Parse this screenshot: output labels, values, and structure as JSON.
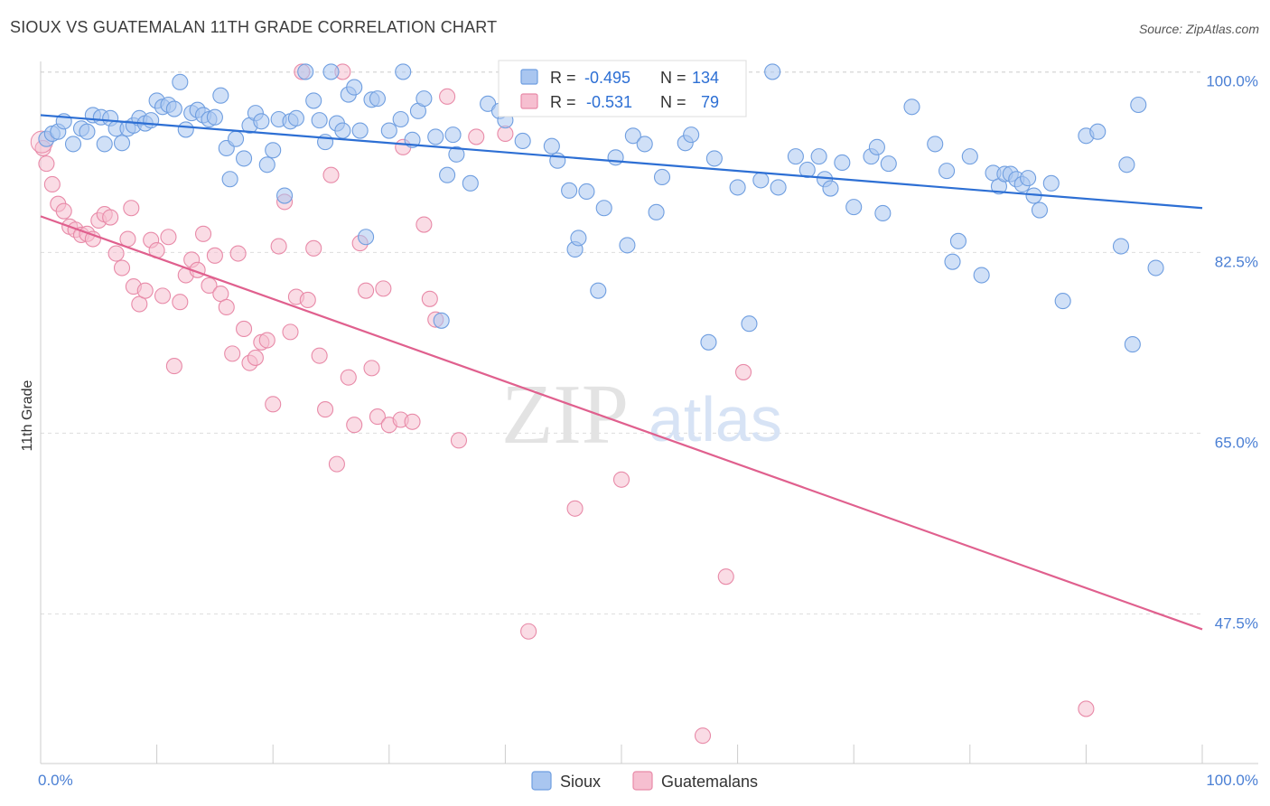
{
  "title": "SIOUX VS GUATEMALAN 11TH GRADE CORRELATION CHART",
  "source": "Source: ZipAtlas.com",
  "watermark": {
    "zip": "ZIP",
    "atlas": "atlas"
  },
  "colors": {
    "sioux_fill": "#a9c6f0",
    "sioux_stroke": "#6f9ee0",
    "sioux_line": "#2d6fd4",
    "guat_fill": "#f6bfd0",
    "guat_stroke": "#e88aa8",
    "guat_line": "#e0608e",
    "grid": "#dddddd",
    "tick_text": "#4a7fd4"
  },
  "legend": {
    "rows": [
      {
        "r_label": "R =",
        "r_value": "-0.495",
        "n_label": "N =",
        "n_value": "134"
      },
      {
        "r_label": "R =",
        "r_value": "-0.531",
        "n_label": "N =",
        "n_value": "79"
      }
    ]
  },
  "bottom_legend": [
    "Sioux",
    "Guatemalans"
  ],
  "chart_data": {
    "type": "scatter",
    "title": "SIOUX VS GUATEMALAN 11TH GRADE CORRELATION CHART",
    "xlabel": "",
    "ylabel": "11th Grade",
    "xlim": [
      0,
      100
    ],
    "ylim": [
      33,
      101
    ],
    "x_tick_labels": [
      "0.0%",
      "100.0%"
    ],
    "y_ticks": [
      47.5,
      65.0,
      82.5,
      100.0
    ],
    "y_tick_labels": [
      "47.5%",
      "65.0%",
      "82.5%",
      "100.0%"
    ],
    "grid": true,
    "legend_position": "top-center",
    "series": [
      {
        "name": "Sioux",
        "trend": {
          "x": [
            0,
            100
          ],
          "y": [
            95.8,
            86.8
          ]
        },
        "points": [
          [
            0.5,
            93.5
          ],
          [
            1.0,
            94.0
          ],
          [
            1.5,
            94.2
          ],
          [
            2.0,
            95.2
          ],
          [
            2.8,
            93.0
          ],
          [
            3.5,
            94.5
          ],
          [
            4.0,
            94.2
          ],
          [
            4.5,
            95.8
          ],
          [
            5.2,
            95.6
          ],
          [
            5.5,
            93.0
          ],
          [
            6.0,
            95.5
          ],
          [
            6.5,
            94.5
          ],
          [
            7.0,
            93.1
          ],
          [
            7.5,
            94.5
          ],
          [
            8.0,
            94.8
          ],
          [
            8.5,
            95.5
          ],
          [
            9.0,
            95.0
          ],
          [
            9.5,
            95.3
          ],
          [
            10.0,
            97.2
          ],
          [
            10.5,
            96.6
          ],
          [
            11.0,
            96.8
          ],
          [
            11.5,
            96.4
          ],
          [
            12.0,
            99.0
          ],
          [
            12.5,
            94.4
          ],
          [
            13.0,
            96.0
          ],
          [
            13.5,
            96.3
          ],
          [
            14.0,
            95.8
          ],
          [
            14.5,
            95.4
          ],
          [
            15.0,
            95.6
          ],
          [
            15.5,
            97.7
          ],
          [
            16.0,
            92.6
          ],
          [
            16.3,
            89.6
          ],
          [
            16.8,
            93.5
          ],
          [
            17.5,
            91.6
          ],
          [
            18.0,
            94.8
          ],
          [
            18.5,
            96.0
          ],
          [
            19.0,
            95.2
          ],
          [
            19.5,
            91.0
          ],
          [
            20.0,
            92.4
          ],
          [
            20.5,
            95.4
          ],
          [
            21.0,
            88.0
          ],
          [
            21.5,
            95.2
          ],
          [
            22.0,
            95.5
          ],
          [
            22.8,
            100.0
          ],
          [
            23.5,
            97.2
          ],
          [
            24.0,
            95.3
          ],
          [
            24.5,
            93.2
          ],
          [
            25.0,
            100.0
          ],
          [
            25.5,
            95.0
          ],
          [
            26.0,
            94.3
          ],
          [
            26.5,
            97.8
          ],
          [
            27.0,
            98.5
          ],
          [
            27.5,
            94.3
          ],
          [
            28.0,
            84.0
          ],
          [
            28.5,
            97.3
          ],
          [
            29.0,
            97.4
          ],
          [
            30.0,
            94.3
          ],
          [
            31.0,
            95.4
          ],
          [
            31.2,
            100.0
          ],
          [
            32.0,
            93.4
          ],
          [
            32.5,
            96.2
          ],
          [
            33.0,
            97.4
          ],
          [
            34.0,
            93.7
          ],
          [
            34.5,
            75.9
          ],
          [
            35.0,
            90.0
          ],
          [
            35.5,
            93.9
          ],
          [
            35.8,
            92.0
          ],
          [
            37.0,
            89.2
          ],
          [
            38.5,
            96.9
          ],
          [
            39.5,
            96.2
          ],
          [
            40.0,
            95.3
          ],
          [
            41.5,
            93.3
          ],
          [
            42.5,
            100.0
          ],
          [
            44.0,
            92.8
          ],
          [
            44.5,
            91.4
          ],
          [
            45.5,
            88.5
          ],
          [
            46.0,
            82.8
          ],
          [
            46.3,
            83.9
          ],
          [
            47.0,
            88.4
          ],
          [
            48.0,
            78.8
          ],
          [
            48.5,
            86.8
          ],
          [
            49.5,
            91.7
          ],
          [
            50.5,
            83.2
          ],
          [
            51.0,
            93.8
          ],
          [
            52.0,
            93.0
          ],
          [
            53.0,
            86.4
          ],
          [
            53.5,
            89.8
          ],
          [
            55.5,
            93.1
          ],
          [
            56.0,
            93.9
          ],
          [
            57.5,
            73.8
          ],
          [
            58.0,
            91.6
          ],
          [
            58.5,
            100.0
          ],
          [
            60.0,
            88.8
          ],
          [
            61.0,
            75.6
          ],
          [
            62.0,
            89.5
          ],
          [
            63.0,
            100.0
          ],
          [
            63.5,
            88.8
          ],
          [
            65.0,
            91.8
          ],
          [
            66.0,
            90.5
          ],
          [
            67.0,
            91.8
          ],
          [
            67.5,
            89.6
          ],
          [
            68.0,
            88.7
          ],
          [
            69.0,
            91.2
          ],
          [
            70.0,
            86.9
          ],
          [
            71.5,
            91.8
          ],
          [
            72.0,
            92.7
          ],
          [
            72.5,
            86.3
          ],
          [
            73.0,
            91.1
          ],
          [
            75.0,
            96.6
          ],
          [
            77.0,
            93.0
          ],
          [
            78.0,
            90.4
          ],
          [
            78.5,
            81.6
          ],
          [
            79.0,
            83.6
          ],
          [
            80.0,
            91.8
          ],
          [
            81.0,
            80.3
          ],
          [
            82.0,
            90.2
          ],
          [
            82.5,
            88.9
          ],
          [
            83.0,
            90.1
          ],
          [
            83.5,
            90.1
          ],
          [
            84.0,
            89.6
          ],
          [
            84.5,
            89.1
          ],
          [
            85.0,
            89.7
          ],
          [
            85.5,
            88.0
          ],
          [
            86.0,
            86.6
          ],
          [
            87.0,
            89.2
          ],
          [
            88.0,
            77.8
          ],
          [
            90.0,
            93.8
          ],
          [
            91.0,
            94.2
          ],
          [
            93.0,
            83.1
          ],
          [
            93.5,
            91.0
          ],
          [
            94.0,
            73.6
          ],
          [
            94.5,
            96.8
          ],
          [
            96.0,
            81.0
          ]
        ]
      },
      {
        "name": "Guatemalans",
        "trend": {
          "x": [
            0,
            100
          ],
          "y": [
            86.0,
            46.0
          ]
        },
        "points": [
          [
            0.2,
            92.6
          ],
          [
            0.5,
            91.1
          ],
          [
            1.0,
            89.1
          ],
          [
            1.5,
            87.2
          ],
          [
            2.0,
            86.5
          ],
          [
            2.5,
            85.0
          ],
          [
            3.0,
            84.7
          ],
          [
            3.5,
            84.2
          ],
          [
            4.0,
            84.3
          ],
          [
            4.5,
            83.8
          ],
          [
            5.0,
            85.6
          ],
          [
            5.5,
            86.2
          ],
          [
            6.0,
            85.9
          ],
          [
            6.5,
            82.4
          ],
          [
            7.0,
            81.0
          ],
          [
            7.5,
            83.8
          ],
          [
            7.8,
            86.8
          ],
          [
            8.0,
            79.2
          ],
          [
            8.5,
            77.5
          ],
          [
            9.0,
            78.8
          ],
          [
            9.5,
            83.7
          ],
          [
            10.0,
            82.7
          ],
          [
            10.5,
            78.3
          ],
          [
            11.0,
            84.0
          ],
          [
            11.5,
            71.5
          ],
          [
            12.0,
            77.7
          ],
          [
            12.5,
            80.3
          ],
          [
            13.0,
            81.8
          ],
          [
            13.5,
            80.8
          ],
          [
            14.0,
            84.3
          ],
          [
            14.5,
            79.3
          ],
          [
            15.0,
            82.2
          ],
          [
            15.5,
            78.5
          ],
          [
            16.0,
            77.2
          ],
          [
            16.5,
            72.7
          ],
          [
            17.0,
            82.4
          ],
          [
            17.5,
            75.1
          ],
          [
            18.0,
            71.8
          ],
          [
            18.5,
            72.3
          ],
          [
            19.0,
            73.8
          ],
          [
            19.5,
            74.0
          ],
          [
            20.0,
            67.8
          ],
          [
            20.5,
            83.1
          ],
          [
            21.0,
            87.4
          ],
          [
            21.5,
            74.8
          ],
          [
            22.0,
            78.2
          ],
          [
            22.5,
            100.0
          ],
          [
            23.0,
            77.9
          ],
          [
            23.5,
            82.9
          ],
          [
            24.0,
            72.5
          ],
          [
            24.5,
            67.3
          ],
          [
            25.0,
            90.0
          ],
          [
            25.5,
            62.0
          ],
          [
            26.0,
            100.0
          ],
          [
            26.5,
            70.4
          ],
          [
            27.0,
            65.8
          ],
          [
            27.5,
            83.4
          ],
          [
            28.0,
            78.8
          ],
          [
            28.5,
            71.3
          ],
          [
            29.0,
            66.6
          ],
          [
            29.5,
            79.0
          ],
          [
            30.0,
            65.8
          ],
          [
            31.0,
            66.3
          ],
          [
            31.2,
            92.7
          ],
          [
            32.0,
            66.1
          ],
          [
            33.0,
            85.2
          ],
          [
            33.5,
            78.0
          ],
          [
            34.0,
            76.0
          ],
          [
            35.0,
            97.6
          ],
          [
            36.0,
            64.3
          ],
          [
            37.5,
            93.7
          ],
          [
            40.0,
            94.0
          ],
          [
            42.0,
            45.8
          ],
          [
            46.0,
            57.7
          ],
          [
            50.0,
            60.5
          ],
          [
            57.0,
            35.7
          ],
          [
            58.0,
            99.8
          ],
          [
            59.0,
            51.1
          ],
          [
            60.5,
            70.9
          ],
          [
            90.0,
            38.3
          ]
        ]
      }
    ]
  }
}
